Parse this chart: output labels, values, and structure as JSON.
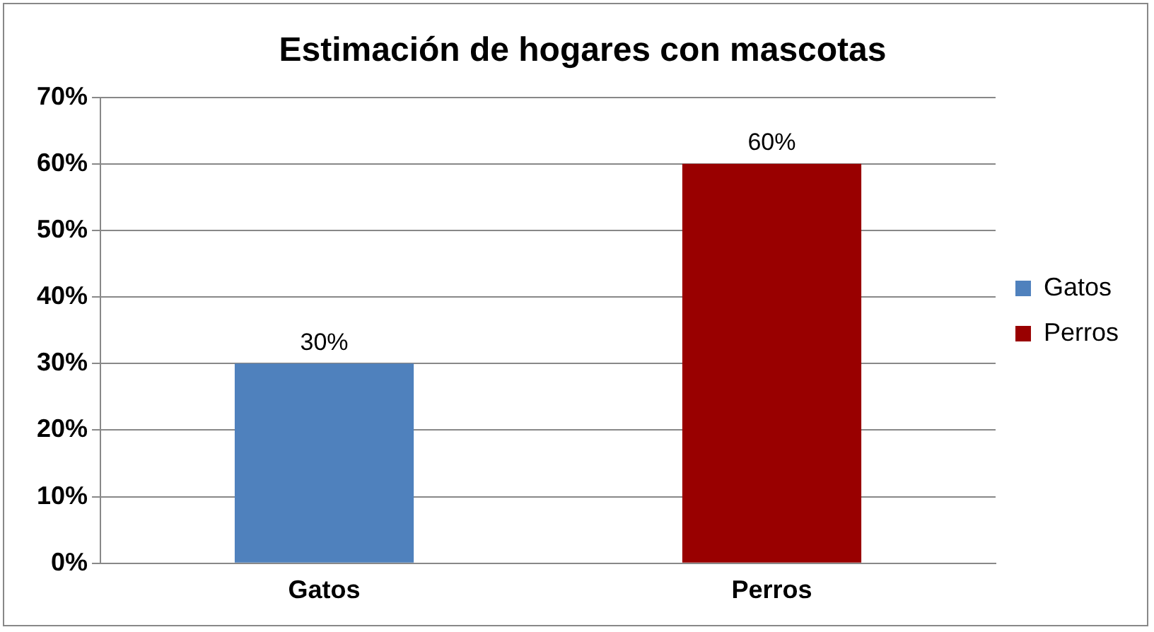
{
  "chart_data": {
    "type": "bar",
    "title": "Estimación de hogares con mascotas",
    "categories": [
      "Gatos",
      "Perros"
    ],
    "series": [
      {
        "name": "Gatos",
        "color": "#4f81bd",
        "values": [
          30,
          null
        ],
        "value_labels": [
          "30%",
          null
        ]
      },
      {
        "name": "Perros",
        "color": "#990000",
        "values": [
          null,
          60
        ],
        "value_labels": [
          null,
          "60%"
        ]
      }
    ],
    "ylim": [
      0,
      70
    ],
    "yticks": [
      {
        "value": 0,
        "label": "0%"
      },
      {
        "value": 10,
        "label": "10%"
      },
      {
        "value": 20,
        "label": "20%"
      },
      {
        "value": 30,
        "label": "30%"
      },
      {
        "value": 40,
        "label": "40%"
      },
      {
        "value": 50,
        "label": "50%"
      },
      {
        "value": 60,
        "label": "60%"
      },
      {
        "value": 70,
        "label": "70%"
      }
    ],
    "grid": "y",
    "legend": "right"
  }
}
